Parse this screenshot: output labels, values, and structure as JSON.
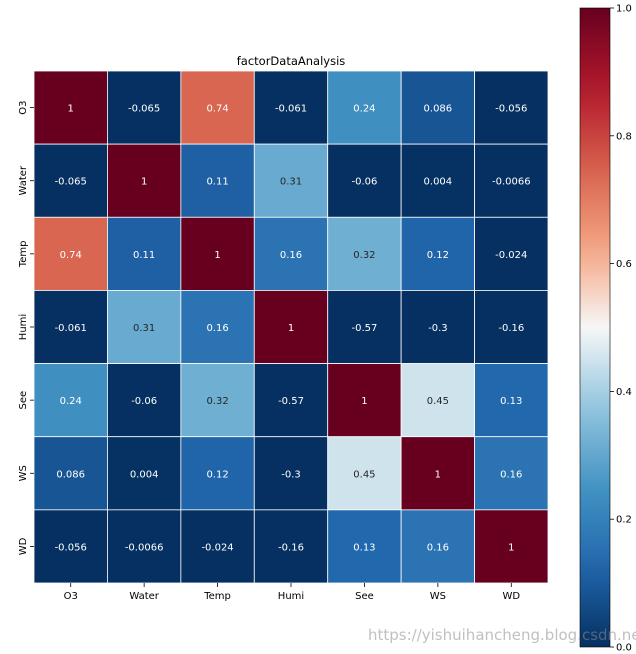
{
  "chart_data": {
    "type": "heatmap",
    "title": "factorDataAnalysis",
    "xlabel": "",
    "ylabel": "",
    "x_categories": [
      "O3",
      "Water",
      "Temp",
      "Humi",
      "See",
      "WS",
      "WD"
    ],
    "y_categories": [
      "O3",
      "Water",
      "Temp",
      "Humi",
      "See",
      "WS",
      "WD"
    ],
    "values": [
      [
        1,
        -0.065,
        0.74,
        -0.061,
        0.24,
        0.086,
        -0.056
      ],
      [
        -0.065,
        1,
        0.11,
        0.31,
        -0.06,
        0.004,
        -0.0066
      ],
      [
        0.74,
        0.11,
        1,
        0.16,
        0.32,
        0.12,
        -0.024
      ],
      [
        -0.061,
        0.31,
        0.16,
        1,
        -0.57,
        -0.3,
        -0.16
      ],
      [
        0.24,
        -0.06,
        0.32,
        -0.57,
        1,
        0.45,
        0.13
      ],
      [
        0.086,
        0.004,
        0.12,
        -0.3,
        0.45,
        1,
        0.16
      ],
      [
        -0.056,
        -0.0066,
        -0.024,
        -0.16,
        0.13,
        0.16,
        1
      ]
    ],
    "value_labels": [
      [
        "1",
        "-0.065",
        "0.74",
        "-0.061",
        "0.24",
        "0.086",
        "-0.056"
      ],
      [
        "-0.065",
        "1",
        "0.11",
        "0.31",
        "-0.06",
        "0.004",
        "-0.0066"
      ],
      [
        "0.74",
        "0.11",
        "1",
        "0.16",
        "0.32",
        "0.12",
        "-0.024"
      ],
      [
        "-0.061",
        "0.31",
        "0.16",
        "1",
        "-0.57",
        "-0.3",
        "-0.16"
      ],
      [
        "0.24",
        "-0.06",
        "0.32",
        "-0.57",
        "1",
        "0.45",
        "0.13"
      ],
      [
        "0.086",
        "0.004",
        "0.12",
        "-0.3",
        "0.45",
        "1",
        "0.16"
      ],
      [
        "-0.056",
        "-0.0066",
        "-0.024",
        "-0.16",
        "0.13",
        "0.16",
        "1"
      ]
    ],
    "colormap": "RdBu_r",
    "vmin": 0.0,
    "vmax": 1.0,
    "colorbar_ticks": [
      0.0,
      0.2,
      0.4,
      0.6,
      0.8,
      1.0
    ],
    "colorbar_tick_labels": [
      "0.0",
      "0.2",
      "0.4",
      "0.6",
      "0.8",
      "1.0"
    ],
    "annotated": true,
    "gridlines": "white"
  },
  "watermark": "https://yishuihancheng.blog.csdn.net"
}
